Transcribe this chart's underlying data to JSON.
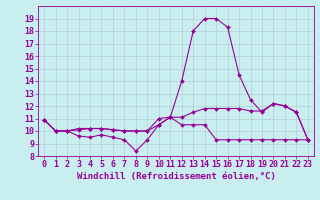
{
  "xlabel": "Windchill (Refroidissement éolien,°C)",
  "bg_color": "#c8eef0",
  "line_color": "#990099",
  "xlim": [
    -0.5,
    23.5
  ],
  "ylim": [
    8,
    20
  ],
  "yticks": [
    8,
    9,
    10,
    11,
    12,
    13,
    14,
    15,
    16,
    17,
    18,
    19
  ],
  "xticks": [
    0,
    1,
    2,
    3,
    4,
    5,
    6,
    7,
    8,
    9,
    10,
    11,
    12,
    13,
    14,
    15,
    16,
    17,
    18,
    19,
    20,
    21,
    22,
    23
  ],
  "series1_x": [
    0,
    1,
    2,
    3,
    4,
    5,
    6,
    7,
    8,
    9,
    10,
    11,
    12,
    13,
    14,
    15,
    16,
    17,
    18,
    19,
    20,
    21,
    22,
    23
  ],
  "series1_y": [
    10.9,
    10.0,
    10.0,
    9.6,
    9.5,
    9.7,
    9.5,
    9.3,
    8.4,
    9.3,
    10.5,
    11.1,
    10.5,
    10.5,
    10.5,
    9.3,
    9.3,
    9.3,
    9.3,
    9.3,
    9.3,
    9.3,
    9.3,
    9.3
  ],
  "series2_x": [
    0,
    1,
    2,
    3,
    4,
    5,
    6,
    7,
    8,
    9,
    10,
    11,
    12,
    13,
    14,
    15,
    16,
    17,
    18,
    19,
    20,
    21,
    22,
    23
  ],
  "series2_y": [
    10.9,
    10.0,
    10.0,
    10.1,
    10.2,
    10.2,
    10.1,
    10.0,
    10.0,
    10.0,
    10.5,
    11.1,
    11.1,
    11.5,
    11.8,
    11.8,
    11.8,
    11.8,
    11.6,
    11.6,
    12.2,
    12.0,
    11.5,
    9.3
  ],
  "series3_x": [
    0,
    1,
    2,
    3,
    4,
    5,
    6,
    7,
    8,
    9,
    10,
    11,
    12,
    13,
    14,
    15,
    16,
    17,
    18,
    19,
    20,
    21,
    22,
    23
  ],
  "series3_y": [
    10.9,
    10.0,
    10.0,
    10.2,
    10.2,
    10.2,
    10.1,
    10.0,
    10.0,
    10.0,
    11.0,
    11.1,
    14.0,
    18.0,
    19.0,
    19.0,
    18.3,
    14.5,
    12.5,
    11.5,
    12.2,
    12.0,
    11.5,
    9.3
  ],
  "font_color": "#990099",
  "tick_fontsize": 6,
  "label_fontsize": 6.5,
  "grid_color": "#b0c8cc",
  "marker_size": 2.0,
  "line_width": 0.8
}
